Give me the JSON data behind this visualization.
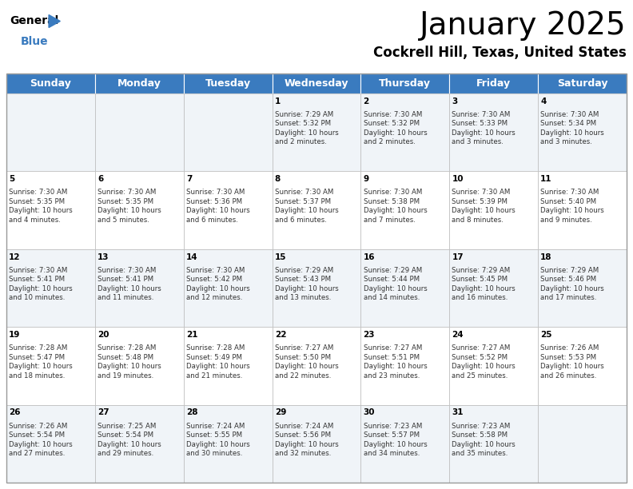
{
  "title": "January 2025",
  "subtitle": "Cockrell Hill, Texas, United States",
  "header_color": "#3a7bbf",
  "header_text_color": "#ffffff",
  "cell_bg_even": "#f0f4f8",
  "cell_bg_odd": "#ffffff",
  "border_color": "#bbbbbb",
  "days_of_week": [
    "Sunday",
    "Monday",
    "Tuesday",
    "Wednesday",
    "Thursday",
    "Friday",
    "Saturday"
  ],
  "title_fontsize": 28,
  "subtitle_fontsize": 12,
  "header_fontsize": 9,
  "cell_fontsize": 6.2,
  "day_num_fontsize": 7.5,
  "fig_width": 7.92,
  "fig_height": 6.12,
  "dpi": 100,
  "calendar": [
    [
      "",
      "",
      "",
      "1\nSunrise: 7:29 AM\nSunset: 5:32 PM\nDaylight: 10 hours\nand 2 minutes.",
      "2\nSunrise: 7:30 AM\nSunset: 5:32 PM\nDaylight: 10 hours\nand 2 minutes.",
      "3\nSunrise: 7:30 AM\nSunset: 5:33 PM\nDaylight: 10 hours\nand 3 minutes.",
      "4\nSunrise: 7:30 AM\nSunset: 5:34 PM\nDaylight: 10 hours\nand 3 minutes."
    ],
    [
      "5\nSunrise: 7:30 AM\nSunset: 5:35 PM\nDaylight: 10 hours\nand 4 minutes.",
      "6\nSunrise: 7:30 AM\nSunset: 5:35 PM\nDaylight: 10 hours\nand 5 minutes.",
      "7\nSunrise: 7:30 AM\nSunset: 5:36 PM\nDaylight: 10 hours\nand 6 minutes.",
      "8\nSunrise: 7:30 AM\nSunset: 5:37 PM\nDaylight: 10 hours\nand 6 minutes.",
      "9\nSunrise: 7:30 AM\nSunset: 5:38 PM\nDaylight: 10 hours\nand 7 minutes.",
      "10\nSunrise: 7:30 AM\nSunset: 5:39 PM\nDaylight: 10 hours\nand 8 minutes.",
      "11\nSunrise: 7:30 AM\nSunset: 5:40 PM\nDaylight: 10 hours\nand 9 minutes."
    ],
    [
      "12\nSunrise: 7:30 AM\nSunset: 5:41 PM\nDaylight: 10 hours\nand 10 minutes.",
      "13\nSunrise: 7:30 AM\nSunset: 5:41 PM\nDaylight: 10 hours\nand 11 minutes.",
      "14\nSunrise: 7:30 AM\nSunset: 5:42 PM\nDaylight: 10 hours\nand 12 minutes.",
      "15\nSunrise: 7:29 AM\nSunset: 5:43 PM\nDaylight: 10 hours\nand 13 minutes.",
      "16\nSunrise: 7:29 AM\nSunset: 5:44 PM\nDaylight: 10 hours\nand 14 minutes.",
      "17\nSunrise: 7:29 AM\nSunset: 5:45 PM\nDaylight: 10 hours\nand 16 minutes.",
      "18\nSunrise: 7:29 AM\nSunset: 5:46 PM\nDaylight: 10 hours\nand 17 minutes."
    ],
    [
      "19\nSunrise: 7:28 AM\nSunset: 5:47 PM\nDaylight: 10 hours\nand 18 minutes.",
      "20\nSunrise: 7:28 AM\nSunset: 5:48 PM\nDaylight: 10 hours\nand 19 minutes.",
      "21\nSunrise: 7:28 AM\nSunset: 5:49 PM\nDaylight: 10 hours\nand 21 minutes.",
      "22\nSunrise: 7:27 AM\nSunset: 5:50 PM\nDaylight: 10 hours\nand 22 minutes.",
      "23\nSunrise: 7:27 AM\nSunset: 5:51 PM\nDaylight: 10 hours\nand 23 minutes.",
      "24\nSunrise: 7:27 AM\nSunset: 5:52 PM\nDaylight: 10 hours\nand 25 minutes.",
      "25\nSunrise: 7:26 AM\nSunset: 5:53 PM\nDaylight: 10 hours\nand 26 minutes."
    ],
    [
      "26\nSunrise: 7:26 AM\nSunset: 5:54 PM\nDaylight: 10 hours\nand 27 minutes.",
      "27\nSunrise: 7:25 AM\nSunset: 5:54 PM\nDaylight: 10 hours\nand 29 minutes.",
      "28\nSunrise: 7:24 AM\nSunset: 5:55 PM\nDaylight: 10 hours\nand 30 minutes.",
      "29\nSunrise: 7:24 AM\nSunset: 5:56 PM\nDaylight: 10 hours\nand 32 minutes.",
      "30\nSunrise: 7:23 AM\nSunset: 5:57 PM\nDaylight: 10 hours\nand 34 minutes.",
      "31\nSunrise: 7:23 AM\nSunset: 5:58 PM\nDaylight: 10 hours\nand 35 minutes.",
      ""
    ]
  ]
}
